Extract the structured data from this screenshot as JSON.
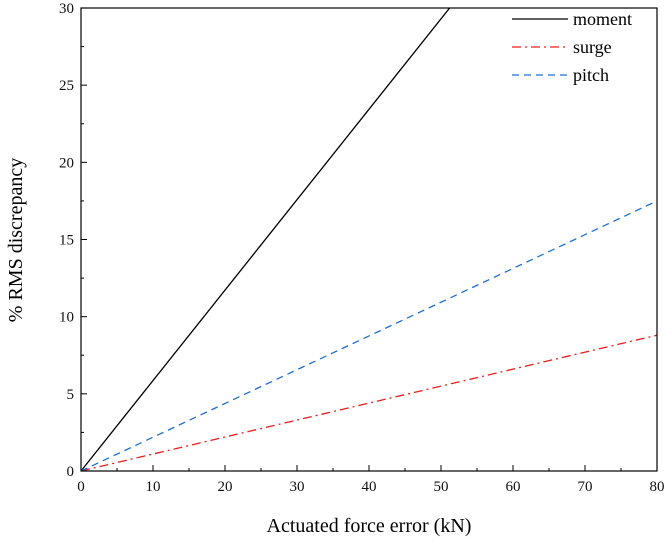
{
  "chart_data": {
    "type": "line",
    "title": "",
    "xlabel": "Actuated force error (kN)",
    "ylabel": "% RMS discrepancy",
    "xlim": [
      0,
      80
    ],
    "ylim": [
      0,
      30
    ],
    "xticks": [
      0,
      10,
      20,
      30,
      40,
      50,
      60,
      70,
      80
    ],
    "yticks": [
      0,
      5,
      10,
      15,
      20,
      25,
      30
    ],
    "grid": false,
    "legend": "top-right",
    "series": [
      {
        "name": "moment",
        "color": "#000000",
        "style": "solid",
        "x": [
          0,
          51.2
        ],
        "y": [
          0,
          30
        ]
      },
      {
        "name": "surge",
        "color": "#e8201c",
        "style": "dashdot",
        "x": [
          0,
          80
        ],
        "y": [
          0,
          8.8
        ]
      },
      {
        "name": "pitch",
        "color": "#1f6fd1",
        "style": "dashed",
        "x": [
          0,
          80
        ],
        "y": [
          0,
          17.5
        ]
      }
    ]
  }
}
